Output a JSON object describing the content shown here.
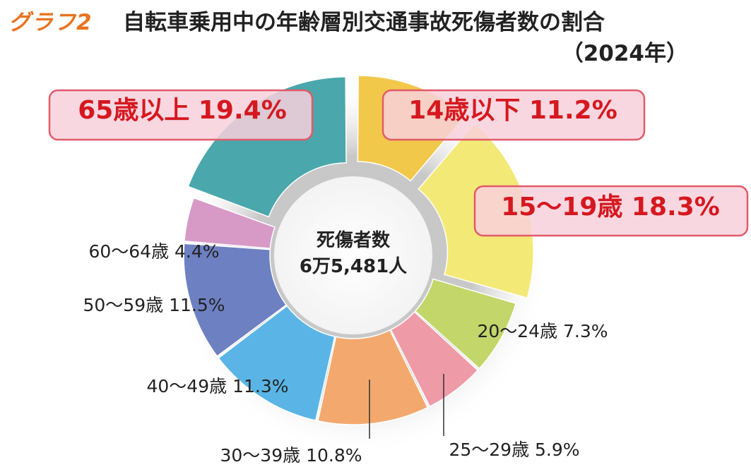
{
  "header": {
    "graph_label": "グラフ2",
    "title": "自転車乗用中の年齢層別交通事故死傷者数の割合",
    "subtitle": "（2024年）"
  },
  "chart_data": {
    "type": "pie",
    "title": "自転車乗用中の年齢層別交通事故死傷者数の割合",
    "subtitle": "（2024年）",
    "center_label_1": "死傷者数",
    "center_label_2": "6万5,481人",
    "unit": "%",
    "slices": [
      {
        "label": "14歳以下",
        "value": 11.2,
        "color": "#f2c84b",
        "highlight": true,
        "exploded": true
      },
      {
        "label": "15〜19歳",
        "value": 18.3,
        "color": "#f3e977",
        "highlight": true,
        "exploded": true
      },
      {
        "label": "20〜24歳",
        "value": 7.3,
        "color": "#c2d66a",
        "highlight": false,
        "exploded": false
      },
      {
        "label": "25〜29歳",
        "value": 5.9,
        "color": "#ef9aa7",
        "highlight": false,
        "exploded": false
      },
      {
        "label": "30〜39歳",
        "value": 10.8,
        "color": "#f3a96e",
        "highlight": false,
        "exploded": false
      },
      {
        "label": "40〜49歳",
        "value": 11.3,
        "color": "#5ab5e6",
        "highlight": false,
        "exploded": false
      },
      {
        "label": "50〜59歳",
        "value": 11.5,
        "color": "#6d80c2",
        "highlight": false,
        "exploded": false
      },
      {
        "label": "60〜64歳",
        "value": 4.4,
        "color": "#d79ac6",
        "highlight": false,
        "exploded": false
      },
      {
        "label": "65歳以上",
        "value": 19.4,
        "color": "#4aa7ab",
        "highlight": true,
        "exploded": true
      }
    ],
    "highlight_box_color": "#f8d0da",
    "highlight_border_color": "#e25a6a",
    "highlight_text_color": "#d51820"
  }
}
